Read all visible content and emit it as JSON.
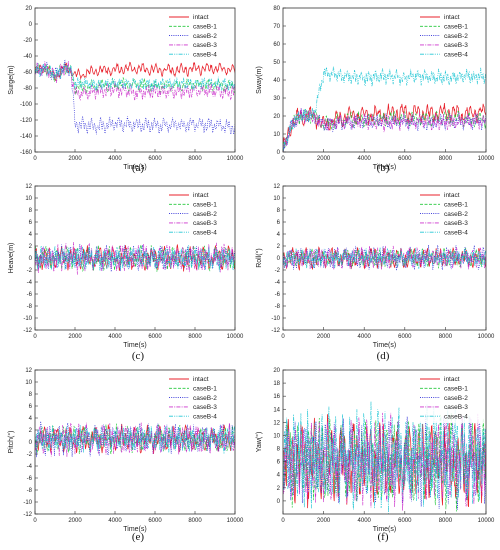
{
  "chart_data": [
    {
      "type": "line",
      "panel_label": "(a)",
      "xlabel": "Time(s)",
      "ylabel": "Surge(m)",
      "xlim": [
        0,
        10000
      ],
      "ylim": [
        -160,
        20
      ],
      "xticks": [
        0,
        2000,
        4000,
        6000,
        8000,
        10000
      ],
      "yticks": [
        -160,
        -140,
        -120,
        -100,
        -80,
        -60,
        -40,
        -20,
        0,
        20
      ],
      "legend": "top-right",
      "x": [
        0,
        500,
        1000,
        1500,
        1800,
        2000,
        3000,
        4000,
        5000,
        6000,
        7000,
        8000,
        9000,
        10000
      ],
      "series": [
        {
          "name": "intact",
          "mean": [
            -60,
            -55,
            -65,
            -55,
            -58,
            -65,
            -58,
            -57,
            -56,
            -57,
            -58,
            -56,
            -55,
            -58
          ],
          "amp": 7
        },
        {
          "name": "caseB-1",
          "mean": [
            -60,
            -55,
            -65,
            -55,
            -58,
            -80,
            -78,
            -76,
            -76,
            -78,
            -77,
            -76,
            -76,
            -78
          ],
          "amp": 7
        },
        {
          "name": "caseB-2",
          "mean": [
            -60,
            -55,
            -65,
            -55,
            -58,
            -125,
            -128,
            -125,
            -126,
            -127,
            -126,
            -125,
            -127,
            -130
          ],
          "amp": 9
        },
        {
          "name": "caseB-3",
          "mean": [
            -60,
            -55,
            -65,
            -55,
            -58,
            -88,
            -84,
            -82,
            -86,
            -84,
            -85,
            -83,
            -84,
            -86
          ],
          "amp": 9
        },
        {
          "name": "caseB-4",
          "mean": [
            -60,
            -55,
            -65,
            -55,
            -58,
            -74,
            -76,
            -74,
            -75,
            -76,
            -74,
            -75,
            -74,
            -76
          ],
          "amp": 7
        }
      ]
    },
    {
      "type": "line",
      "panel_label": "(b)",
      "xlabel": "Time(s)",
      "ylabel": "Sway(m)",
      "xlim": [
        0,
        10000
      ],
      "ylim": [
        0,
        80
      ],
      "xticks": [
        0,
        2000,
        4000,
        6000,
        8000,
        10000
      ],
      "yticks": [
        0,
        10,
        20,
        30,
        40,
        50,
        60,
        70,
        80
      ],
      "legend": "top-right",
      "x": [
        0,
        300,
        800,
        1500,
        2000,
        3000,
        4000,
        5000,
        6000,
        7000,
        8000,
        9000,
        10000
      ],
      "series": [
        {
          "name": "intact",
          "mean": [
            0,
            12,
            20,
            20,
            15,
            20,
            20,
            21,
            22,
            21,
            22,
            21,
            22
          ],
          "amp": 5
        },
        {
          "name": "caseB-1",
          "mean": [
            0,
            12,
            20,
            20,
            15,
            18,
            18,
            18,
            19,
            18,
            19,
            18,
            18
          ],
          "amp": 4
        },
        {
          "name": "caseB-2",
          "mean": [
            0,
            12,
            20,
            20,
            15,
            16,
            17,
            17,
            17,
            16,
            17,
            17,
            17
          ],
          "amp": 4
        },
        {
          "name": "caseB-3",
          "mean": [
            0,
            12,
            20,
            20,
            15,
            17,
            17,
            16,
            17,
            17,
            16,
            17,
            17
          ],
          "amp": 4
        },
        {
          "name": "caseB-4",
          "mean": [
            0,
            12,
            20,
            20,
            44,
            42,
            41,
            42,
            41,
            42,
            41,
            42,
            42
          ],
          "amp": 4
        }
      ]
    },
    {
      "type": "line",
      "panel_label": "(c)",
      "xlabel": "Time(s)",
      "ylabel": "Heave(m)",
      "xlim": [
        0,
        10000
      ],
      "ylim": [
        -12,
        12
      ],
      "xticks": [
        0,
        2000,
        4000,
        6000,
        8000,
        10000
      ],
      "yticks": [
        -12,
        -10,
        -8,
        -6,
        -4,
        -2,
        0,
        2,
        4,
        6,
        8,
        10,
        12
      ],
      "legend": "top-right",
      "x": [
        0,
        10000
      ],
      "series": [
        {
          "name": "intact",
          "mean": [
            0,
            0
          ],
          "amp": 1.8
        },
        {
          "name": "caseB-1",
          "mean": [
            0,
            0
          ],
          "amp": 1.8
        },
        {
          "name": "caseB-2",
          "mean": [
            0,
            0
          ],
          "amp": 1.8
        },
        {
          "name": "caseB-3",
          "mean": [
            0,
            0
          ],
          "amp": 2.2
        },
        {
          "name": "caseB-4",
          "mean": [
            0,
            0
          ],
          "amp": 1.8
        }
      ]
    },
    {
      "type": "line",
      "panel_label": "(d)",
      "xlabel": "Time(s)",
      "ylabel": "Roll(°)",
      "xlim": [
        0,
        10000
      ],
      "ylim": [
        -12,
        12
      ],
      "xticks": [
        0,
        2000,
        4000,
        6000,
        8000,
        10000
      ],
      "yticks": [
        -12,
        -10,
        -8,
        -6,
        -4,
        -2,
        0,
        2,
        4,
        6,
        8,
        10,
        12
      ],
      "legend": "top-right",
      "x": [
        0,
        10000
      ],
      "series": [
        {
          "name": "intact",
          "mean": [
            0,
            0
          ],
          "amp": 1.6
        },
        {
          "name": "caseB-1",
          "mean": [
            0,
            0
          ],
          "amp": 1.4
        },
        {
          "name": "caseB-2",
          "mean": [
            0,
            0
          ],
          "amp": 1.8
        },
        {
          "name": "caseB-3",
          "mean": [
            0,
            0
          ],
          "amp": 1.6
        },
        {
          "name": "caseB-4",
          "mean": [
            0,
            0
          ],
          "amp": 1.4
        }
      ]
    },
    {
      "type": "line",
      "panel_label": "(e)",
      "xlabel": "Time(s)",
      "ylabel": "Pitch(°)",
      "xlim": [
        0,
        10000
      ],
      "ylim": [
        -12,
        12
      ],
      "xticks": [
        0,
        2000,
        4000,
        6000,
        8000,
        10000
      ],
      "yticks": [
        -12,
        -10,
        -8,
        -6,
        -4,
        -2,
        0,
        2,
        4,
        6,
        8,
        10,
        12
      ],
      "legend": "top-right",
      "x": [
        0,
        10000
      ],
      "series": [
        {
          "name": "intact",
          "mean": [
            0.5,
            0.5
          ],
          "amp": 2.0
        },
        {
          "name": "caseB-1",
          "mean": [
            0.5,
            0.5
          ],
          "amp": 2.0
        },
        {
          "name": "caseB-2",
          "mean": [
            0.5,
            0.5
          ],
          "amp": 2.4
        },
        {
          "name": "caseB-3",
          "mean": [
            0.5,
            0.5
          ],
          "amp": 2.4
        },
        {
          "name": "caseB-4",
          "mean": [
            0.5,
            0.5
          ],
          "amp": 2.0
        }
      ]
    },
    {
      "type": "line",
      "panel_label": "(f)",
      "xlabel": "Time(s)",
      "ylabel": "Yaw(°)",
      "xlim": [
        0,
        10000
      ],
      "ylim": [
        -2,
        20
      ],
      "xticks": [
        0,
        2000,
        4000,
        6000,
        8000,
        10000
      ],
      "yticks": [
        0,
        2,
        4,
        6,
        8,
        10,
        12,
        14,
        16,
        18,
        20
      ],
      "legend": "top-right",
      "x": [
        0,
        10000
      ],
      "series": [
        {
          "name": "intact",
          "mean": [
            6,
            6
          ],
          "amp": 6
        },
        {
          "name": "caseB-1",
          "mean": [
            6,
            6
          ],
          "amp": 6
        },
        {
          "name": "caseB-2",
          "mean": [
            6,
            6
          ],
          "amp": 6
        },
        {
          "name": "caseB-3",
          "mean": [
            6,
            6
          ],
          "amp": 6
        },
        {
          "name": "caseB-4",
          "mean": [
            6.5,
            6.5
          ],
          "amp": 7
        }
      ]
    }
  ],
  "colors": {
    "intact": "#e8212b",
    "caseB-1": "#27c93f",
    "caseB-2": "#2b2bd6",
    "caseB-3": "#cc33cc",
    "caseB-4": "#22c6d4"
  }
}
